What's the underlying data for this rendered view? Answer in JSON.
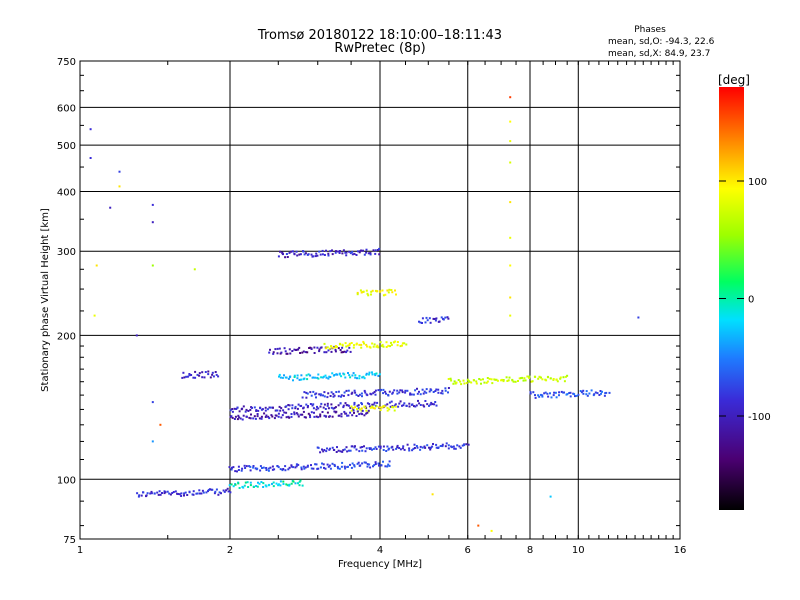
{
  "chart_data": {
    "type": "scatter",
    "title": "Tromsø 20180122 18:10:00–18:11:43",
    "subtitle": "RwPretec (8p)",
    "xlabel": "Frequency [MHz]",
    "ylabel": "Stationary phase Virtual Height [km]",
    "x_scale": "log",
    "y_scale": "log",
    "xlim": [
      1,
      16
    ],
    "ylim": [
      75,
      750
    ],
    "x_ticks": [
      1,
      2,
      4,
      6,
      8,
      10,
      16
    ],
    "y_ticks": [
      75,
      100,
      200,
      300,
      400,
      500,
      600,
      750
    ],
    "x_grid": [
      2,
      4,
      6,
      8,
      10
    ],
    "y_grid": [
      100,
      200,
      300,
      400,
      500,
      600
    ],
    "grid": true,
    "legend": {
      "title": "Phases",
      "line1": "mean, sd,O:  -94.3, 22.6",
      "line2": "mean, sd,X:  84.9, 23.7"
    },
    "colorbar": {
      "label": "[deg]",
      "ticks": [
        100,
        0,
        -100
      ],
      "range": [
        -180,
        180
      ],
      "placement": "right"
    },
    "traces": [
      {
        "f_start": 1.3,
        "f_end": 2.0,
        "height": 93,
        "phase": -100
      },
      {
        "f_start": 2.0,
        "f_end": 2.8,
        "height": 97,
        "phase": -20
      },
      {
        "f_start": 2.0,
        "f_end": 4.2,
        "height": 105,
        "phase": -90
      },
      {
        "f_start": 3.0,
        "f_end": 6.0,
        "height": 115,
        "phase": -95
      },
      {
        "f_start": 2.0,
        "f_end": 5.2,
        "height": 140,
        "phase": -105
      },
      {
        "f_start": 3.5,
        "f_end": 4.3,
        "height": 140,
        "phase": 85
      },
      {
        "f_start": 2.8,
        "f_end": 5.5,
        "height": 150,
        "phase": -95
      },
      {
        "f_start": 2.5,
        "f_end": 4.0,
        "height": 163,
        "phase": -30
      },
      {
        "f_start": 1.6,
        "f_end": 1.9,
        "height": 165,
        "phase": -110
      },
      {
        "f_start": 2.4,
        "f_end": 3.5,
        "height": 185,
        "phase": -120
      },
      {
        "f_start": 3.1,
        "f_end": 4.5,
        "height": 190,
        "phase": 80
      },
      {
        "f_start": 2.0,
        "f_end": 3.8,
        "height": 135,
        "phase": -115
      },
      {
        "f_start": 2.5,
        "f_end": 4.0,
        "height": 295,
        "phase": -105
      },
      {
        "f_start": 3.6,
        "f_end": 4.3,
        "height": 245,
        "phase": 85
      },
      {
        "f_start": 4.8,
        "f_end": 5.5,
        "height": 215,
        "phase": -100
      },
      {
        "f_start": 5.5,
        "f_end": 9.5,
        "height": 160,
        "phase": 60
      },
      {
        "f_start": 8.0,
        "f_end": 11.5,
        "height": 150,
        "phase": -80
      }
    ],
    "points": [
      {
        "x": 1.05,
        "y": 540,
        "phase": -100
      },
      {
        "x": 1.05,
        "y": 470,
        "phase": -100
      },
      {
        "x": 1.2,
        "y": 440,
        "phase": -90
      },
      {
        "x": 1.2,
        "y": 410,
        "phase": 100
      },
      {
        "x": 1.15,
        "y": 370,
        "phase": -110
      },
      {
        "x": 1.4,
        "y": 375,
        "phase": -100
      },
      {
        "x": 1.4,
        "y": 345,
        "phase": -110
      },
      {
        "x": 1.08,
        "y": 280,
        "phase": 100
      },
      {
        "x": 1.07,
        "y": 220,
        "phase": 80
      },
      {
        "x": 1.4,
        "y": 280,
        "phase": 40
      },
      {
        "x": 1.7,
        "y": 275,
        "phase": 60
      },
      {
        "x": 1.3,
        "y": 200,
        "phase": -110
      },
      {
        "x": 1.4,
        "y": 145,
        "phase": -90
      },
      {
        "x": 1.45,
        "y": 130,
        "phase": 150
      },
      {
        "x": 1.4,
        "y": 120,
        "phase": -50
      },
      {
        "x": 7.3,
        "y": 630,
        "phase": 160
      },
      {
        "x": 7.3,
        "y": 560,
        "phase": 90
      },
      {
        "x": 7.3,
        "y": 510,
        "phase": 80
      },
      {
        "x": 7.3,
        "y": 460,
        "phase": 70
      },
      {
        "x": 7.3,
        "y": 380,
        "phase": 100
      },
      {
        "x": 7.3,
        "y": 320,
        "phase": 80
      },
      {
        "x": 7.3,
        "y": 280,
        "phase": 90
      },
      {
        "x": 7.3,
        "y": 240,
        "phase": 100
      },
      {
        "x": 7.3,
        "y": 220,
        "phase": 80
      },
      {
        "x": 13.2,
        "y": 218,
        "phase": -90
      },
      {
        "x": 6.3,
        "y": 80,
        "phase": 150
      },
      {
        "x": 6.7,
        "y": 78,
        "phase": 90
      },
      {
        "x": 8.8,
        "y": 92,
        "phase": -30
      },
      {
        "x": 5.1,
        "y": 93,
        "phase": 100
      }
    ]
  }
}
